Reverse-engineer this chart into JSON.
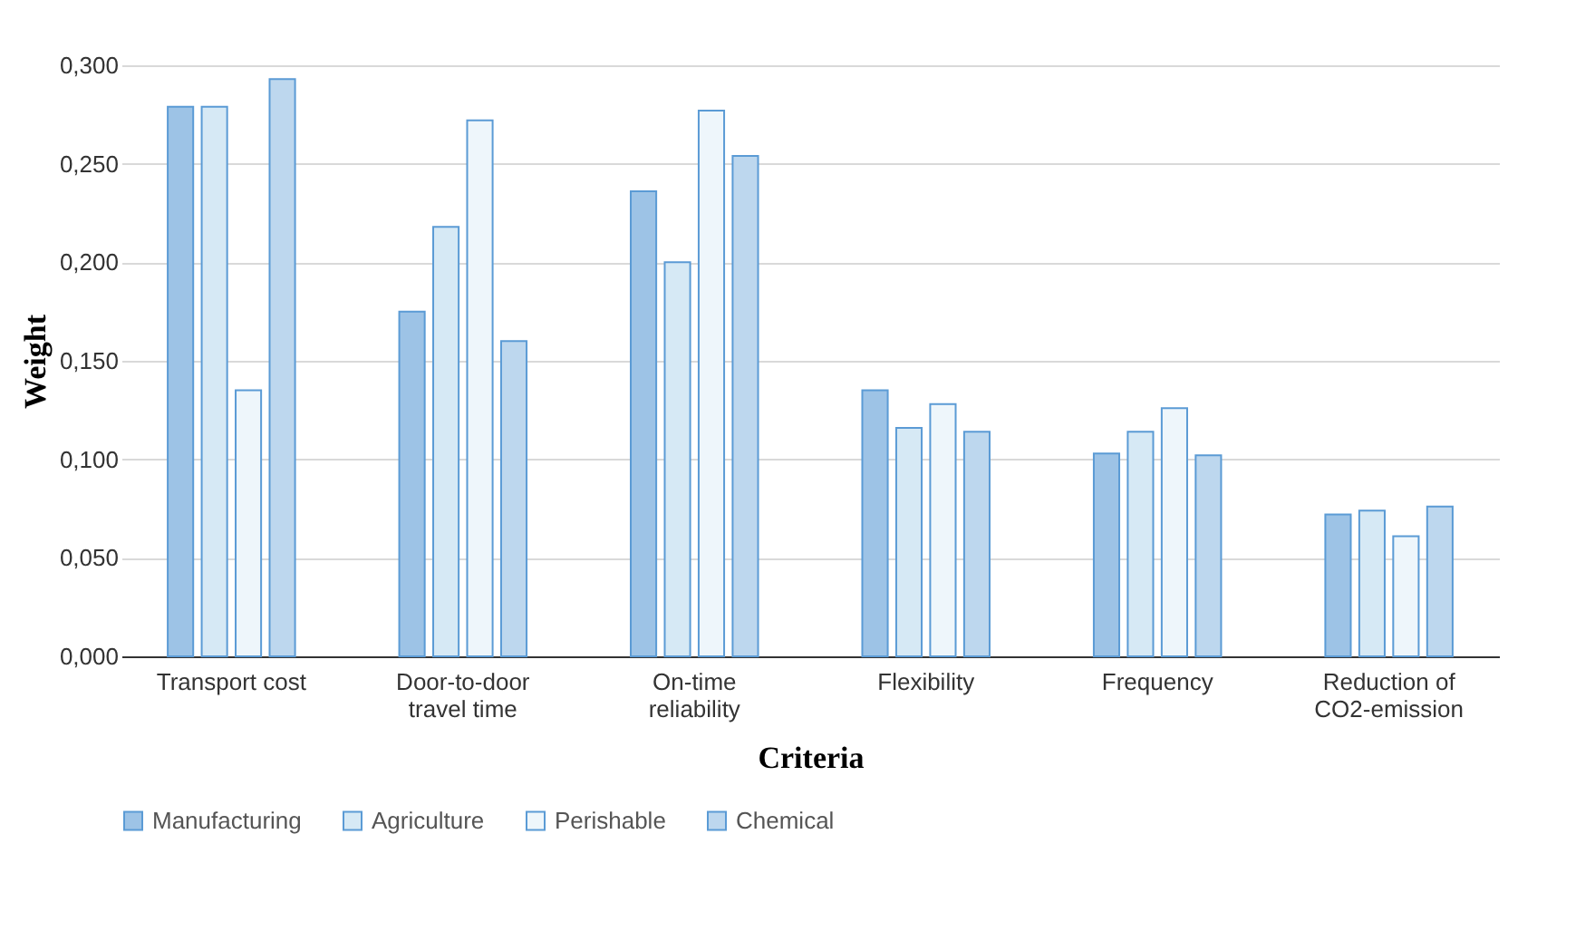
{
  "chart_data": {
    "type": "bar",
    "xlabel": "Criteria",
    "ylabel": "Weight",
    "categories": [
      "Transport cost",
      "Door-to-door travel time",
      "On-time reliability",
      "Flexibility",
      "Frequency",
      "Reduction of CO2-emission"
    ],
    "series": [
      {
        "name": "Manufacturing",
        "color": "#9dc3e6",
        "values": [
          0.279,
          0.175,
          0.236,
          0.135,
          0.103,
          0.072
        ]
      },
      {
        "name": "Agriculture",
        "color": "#d6e9f5",
        "values": [
          0.279,
          0.218,
          0.2,
          0.116,
          0.114,
          0.074
        ]
      },
      {
        "name": "Perishable",
        "color": "#eef6fb",
        "values": [
          0.135,
          0.272,
          0.277,
          0.128,
          0.126,
          0.061
        ]
      },
      {
        "name": "Chemical",
        "color": "#bdd7ee",
        "values": [
          0.293,
          0.16,
          0.254,
          0.114,
          0.102,
          0.076
        ]
      }
    ],
    "ylim": [
      0,
      0.3
    ],
    "yticks": [
      {
        "value": 0,
        "label": "0,000"
      },
      {
        "value": 0.05,
        "label": "0,050"
      },
      {
        "value": 0.1,
        "label": "0,100"
      },
      {
        "value": 0.15,
        "label": "0,150"
      },
      {
        "value": 0.2,
        "label": "0,200"
      },
      {
        "value": 0.25,
        "label": "0,250"
      },
      {
        "value": 0.3,
        "label": "0,300"
      }
    ],
    "grid": "y",
    "legend": "bottom"
  }
}
